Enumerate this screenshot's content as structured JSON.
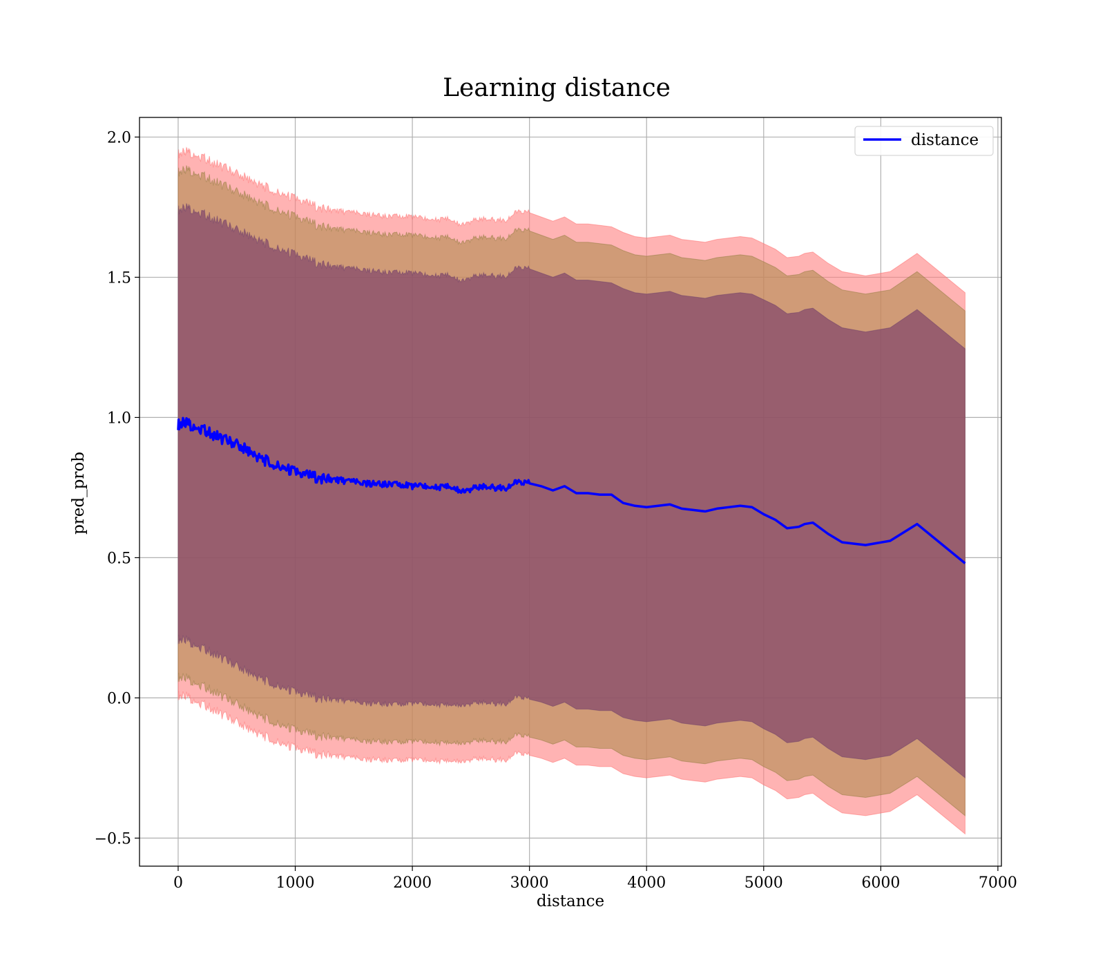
{
  "chart_data": {
    "type": "area",
    "title": "Learning distance",
    "xlabel": "distance",
    "ylabel": "pred_prob",
    "xlim": [
      -330,
      7030
    ],
    "ylim": [
      -0.6,
      2.07
    ],
    "xticks": [
      0,
      1000,
      2000,
      3000,
      4000,
      5000,
      6000,
      7000
    ],
    "xtick_labels": [
      "0",
      "1000",
      "2000",
      "3000",
      "4000",
      "5000",
      "6000",
      "7000"
    ],
    "yticks": [
      -0.5,
      0.0,
      0.5,
      1.0,
      1.5,
      2.0
    ],
    "ytick_labels": [
      "−0.5",
      "0.0",
      "0.5",
      "1.0",
      "1.5",
      "2.0"
    ],
    "grid": true,
    "legend": {
      "position": "top-right",
      "entries": [
        "distance"
      ]
    },
    "colors": {
      "line": "#0000ff",
      "band_outer": "#ff8080",
      "band_middle": "#b08a4e",
      "band_inner": "#7a3d6a",
      "band_outer_edge": "#ff6666",
      "band_middle_edge": "#8c7a3c",
      "band_inner_edge": "#6a3d6a"
    },
    "series": [
      {
        "name": "distance",
        "x": [
          0,
          50,
          100,
          200,
          300,
          400,
          500,
          600,
          700,
          800,
          900,
          1000,
          1100,
          1200,
          1300,
          1400,
          1500,
          1600,
          1700,
          1800,
          1900,
          2000,
          2100,
          2200,
          2300,
          2400,
          2500,
          2600,
          2700,
          2800,
          2900,
          3000,
          3100,
          3200,
          3300,
          3400,
          3500,
          3600,
          3700,
          3800,
          3900,
          4000,
          4100,
          4200,
          4300,
          4400,
          4500,
          4600,
          4700,
          4800,
          4900,
          5000,
          5100,
          5200,
          5300,
          5350,
          5420,
          5550,
          5670,
          5870,
          6080,
          6310,
          6720
        ],
        "y": [
          0.975,
          0.98,
          0.975,
          0.96,
          0.94,
          0.92,
          0.905,
          0.88,
          0.855,
          0.835,
          0.82,
          0.805,
          0.795,
          0.785,
          0.78,
          0.775,
          0.77,
          0.765,
          0.762,
          0.76,
          0.762,
          0.755,
          0.755,
          0.75,
          0.755,
          0.74,
          0.745,
          0.755,
          0.75,
          0.75,
          0.77,
          0.765,
          0.755,
          0.74,
          0.755,
          0.73,
          0.73,
          0.725,
          0.725,
          0.695,
          0.685,
          0.68,
          0.685,
          0.69,
          0.675,
          0.67,
          0.665,
          0.675,
          0.68,
          0.685,
          0.68,
          0.655,
          0.635,
          0.605,
          0.61,
          0.62,
          0.625,
          0.585,
          0.555,
          0.545,
          0.56,
          0.62,
          0.48
        ]
      }
    ],
    "bands": [
      {
        "name": "outer",
        "lower": [
          0.01,
          0.005,
          0.0,
          -0.02,
          -0.04,
          -0.065,
          -0.085,
          -0.11,
          -0.13,
          -0.15,
          -0.165,
          -0.18,
          -0.19,
          -0.2,
          -0.205,
          -0.21,
          -0.215,
          -0.22,
          -0.22,
          -0.225,
          -0.22,
          -0.22,
          -0.222,
          -0.225,
          -0.225,
          -0.225,
          -0.22,
          -0.215,
          -0.22,
          -0.22,
          -0.195,
          -0.205,
          -0.215,
          -0.23,
          -0.215,
          -0.24,
          -0.24,
          -0.245,
          -0.245,
          -0.27,
          -0.28,
          -0.285,
          -0.28,
          -0.275,
          -0.29,
          -0.295,
          -0.3,
          -0.29,
          -0.285,
          -0.28,
          -0.285,
          -0.31,
          -0.33,
          -0.36,
          -0.355,
          -0.345,
          -0.34,
          -0.38,
          -0.41,
          -0.42,
          -0.405,
          -0.345,
          -0.485
        ],
        "upper": [
          1.94,
          1.945,
          1.945,
          1.93,
          1.91,
          1.89,
          1.87,
          1.85,
          1.83,
          1.81,
          1.795,
          1.78,
          1.765,
          1.75,
          1.74,
          1.735,
          1.73,
          1.725,
          1.72,
          1.715,
          1.72,
          1.715,
          1.71,
          1.705,
          1.71,
          1.69,
          1.7,
          1.71,
          1.705,
          1.705,
          1.735,
          1.73,
          1.715,
          1.7,
          1.715,
          1.69,
          1.69,
          1.685,
          1.68,
          1.66,
          1.645,
          1.64,
          1.645,
          1.65,
          1.635,
          1.63,
          1.625,
          1.635,
          1.64,
          1.645,
          1.64,
          1.62,
          1.6,
          1.57,
          1.575,
          1.585,
          1.59,
          1.55,
          1.52,
          1.505,
          1.52,
          1.585,
          1.445
        ]
      },
      {
        "name": "middle",
        "lower": [
          0.075,
          0.07,
          0.065,
          0.045,
          0.025,
          0.0,
          -0.02,
          -0.045,
          -0.065,
          -0.085,
          -0.1,
          -0.115,
          -0.125,
          -0.135,
          -0.14,
          -0.145,
          -0.15,
          -0.155,
          -0.155,
          -0.16,
          -0.155,
          -0.155,
          -0.157,
          -0.16,
          -0.16,
          -0.16,
          -0.155,
          -0.15,
          -0.155,
          -0.155,
          -0.13,
          -0.14,
          -0.15,
          -0.165,
          -0.15,
          -0.175,
          -0.175,
          -0.18,
          -0.18,
          -0.205,
          -0.215,
          -0.22,
          -0.215,
          -0.21,
          -0.225,
          -0.23,
          -0.235,
          -0.225,
          -0.22,
          -0.215,
          -0.22,
          -0.245,
          -0.265,
          -0.295,
          -0.29,
          -0.28,
          -0.275,
          -0.315,
          -0.345,
          -0.355,
          -0.34,
          -0.28,
          -0.42
        ],
        "upper": [
          1.875,
          1.88,
          1.88,
          1.865,
          1.845,
          1.825,
          1.805,
          1.785,
          1.765,
          1.745,
          1.73,
          1.715,
          1.7,
          1.685,
          1.675,
          1.67,
          1.665,
          1.66,
          1.655,
          1.65,
          1.655,
          1.65,
          1.645,
          1.64,
          1.645,
          1.625,
          1.635,
          1.645,
          1.64,
          1.64,
          1.67,
          1.665,
          1.65,
          1.635,
          1.65,
          1.625,
          1.625,
          1.62,
          1.615,
          1.595,
          1.58,
          1.575,
          1.58,
          1.585,
          1.57,
          1.565,
          1.56,
          1.57,
          1.575,
          1.58,
          1.575,
          1.555,
          1.535,
          1.505,
          1.51,
          1.52,
          1.525,
          1.485,
          1.455,
          1.44,
          1.455,
          1.52,
          1.38
        ]
      },
      {
        "name": "inner",
        "lower": [
          0.21,
          0.205,
          0.2,
          0.18,
          0.16,
          0.135,
          0.115,
          0.09,
          0.07,
          0.05,
          0.035,
          0.02,
          0.01,
          0.0,
          -0.005,
          -0.01,
          -0.015,
          -0.02,
          -0.02,
          -0.025,
          -0.02,
          -0.02,
          -0.022,
          -0.025,
          -0.025,
          -0.025,
          -0.02,
          -0.015,
          -0.02,
          -0.02,
          0.005,
          -0.005,
          -0.015,
          -0.03,
          -0.015,
          -0.04,
          -0.04,
          -0.045,
          -0.045,
          -0.07,
          -0.08,
          -0.085,
          -0.08,
          -0.075,
          -0.09,
          -0.095,
          -0.1,
          -0.09,
          -0.085,
          -0.08,
          -0.085,
          -0.11,
          -0.13,
          -0.16,
          -0.155,
          -0.145,
          -0.14,
          -0.18,
          -0.21,
          -0.22,
          -0.205,
          -0.145,
          -0.285
        ],
        "upper": [
          1.74,
          1.745,
          1.745,
          1.73,
          1.71,
          1.69,
          1.67,
          1.65,
          1.63,
          1.61,
          1.595,
          1.58,
          1.565,
          1.55,
          1.54,
          1.535,
          1.53,
          1.525,
          1.52,
          1.515,
          1.52,
          1.515,
          1.51,
          1.505,
          1.51,
          1.49,
          1.5,
          1.51,
          1.505,
          1.505,
          1.535,
          1.53,
          1.515,
          1.5,
          1.515,
          1.49,
          1.49,
          1.485,
          1.48,
          1.46,
          1.445,
          1.44,
          1.445,
          1.45,
          1.435,
          1.43,
          1.425,
          1.435,
          1.44,
          1.445,
          1.44,
          1.42,
          1.4,
          1.37,
          1.375,
          1.385,
          1.39,
          1.35,
          1.32,
          1.305,
          1.32,
          1.385,
          1.245
        ]
      }
    ]
  }
}
